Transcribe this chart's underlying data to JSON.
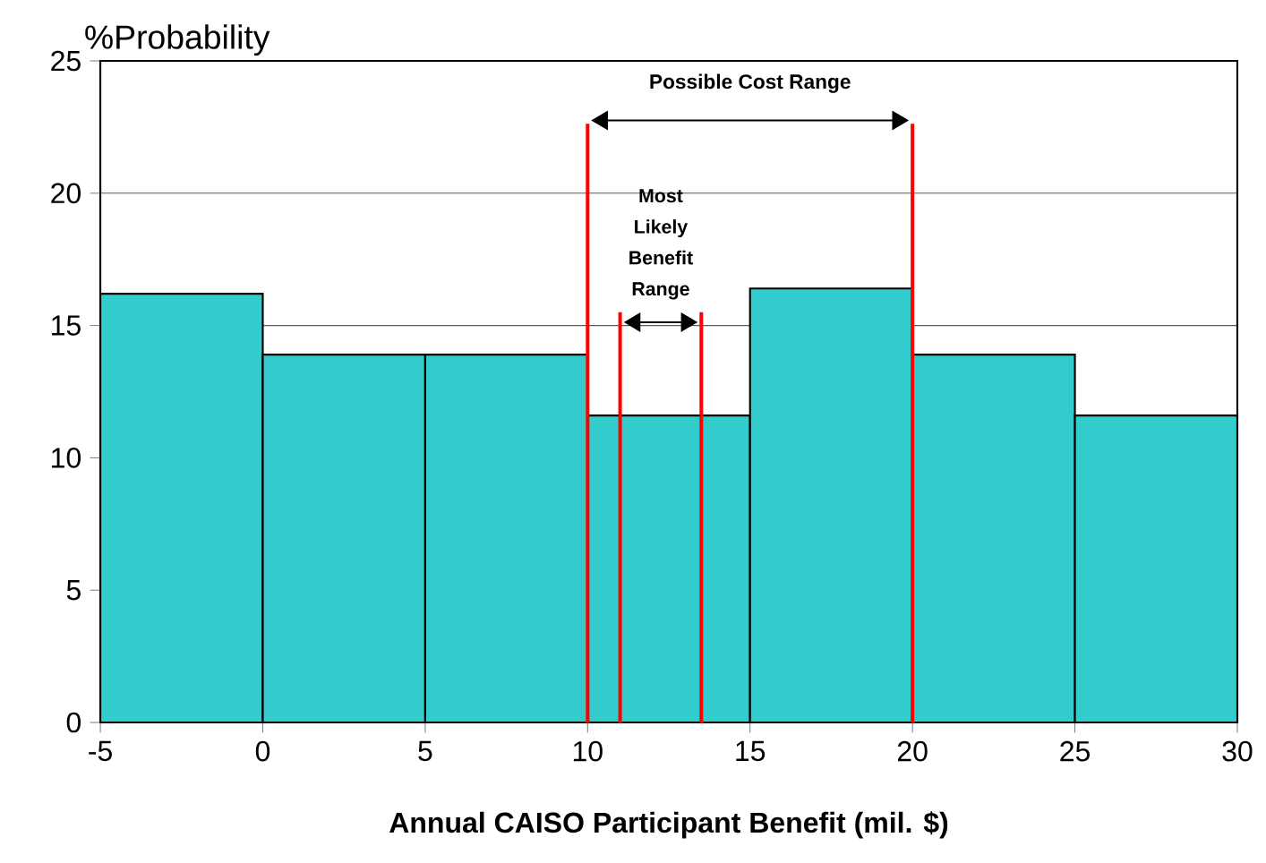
{
  "chart_data": {
    "type": "histogram",
    "ylabel": "%Probability",
    "xlabel": "Annual CAISO Participant Benefit (mil. $)",
    "bins": [
      -5,
      0,
      5,
      10,
      15,
      20,
      25,
      30
    ],
    "values": [
      16.2,
      13.9,
      13.9,
      11.6,
      16.4,
      13.9,
      11.6
    ],
    "color": "#33cccc",
    "xlim": [
      -5,
      30
    ],
    "xticks": [
      -5,
      0,
      5,
      10,
      15,
      20,
      25,
      30
    ],
    "ylim": [
      0,
      25
    ],
    "yticks": [
      0,
      5,
      10,
      15,
      20,
      25
    ],
    "grid": "y",
    "ref_lines": [
      {
        "axis": "x",
        "value": 10,
        "color": "#ff0000"
      },
      {
        "axis": "x",
        "value": 20,
        "color": "#ff0000"
      },
      {
        "axis": "x",
        "value": 11,
        "color": "#ff0000"
      },
      {
        "axis": "x",
        "value": 13.5,
        "color": "#ff0000"
      }
    ],
    "annotations": [
      "Possible Cost Range",
      "Most Likely Benefit Range"
    ]
  }
}
